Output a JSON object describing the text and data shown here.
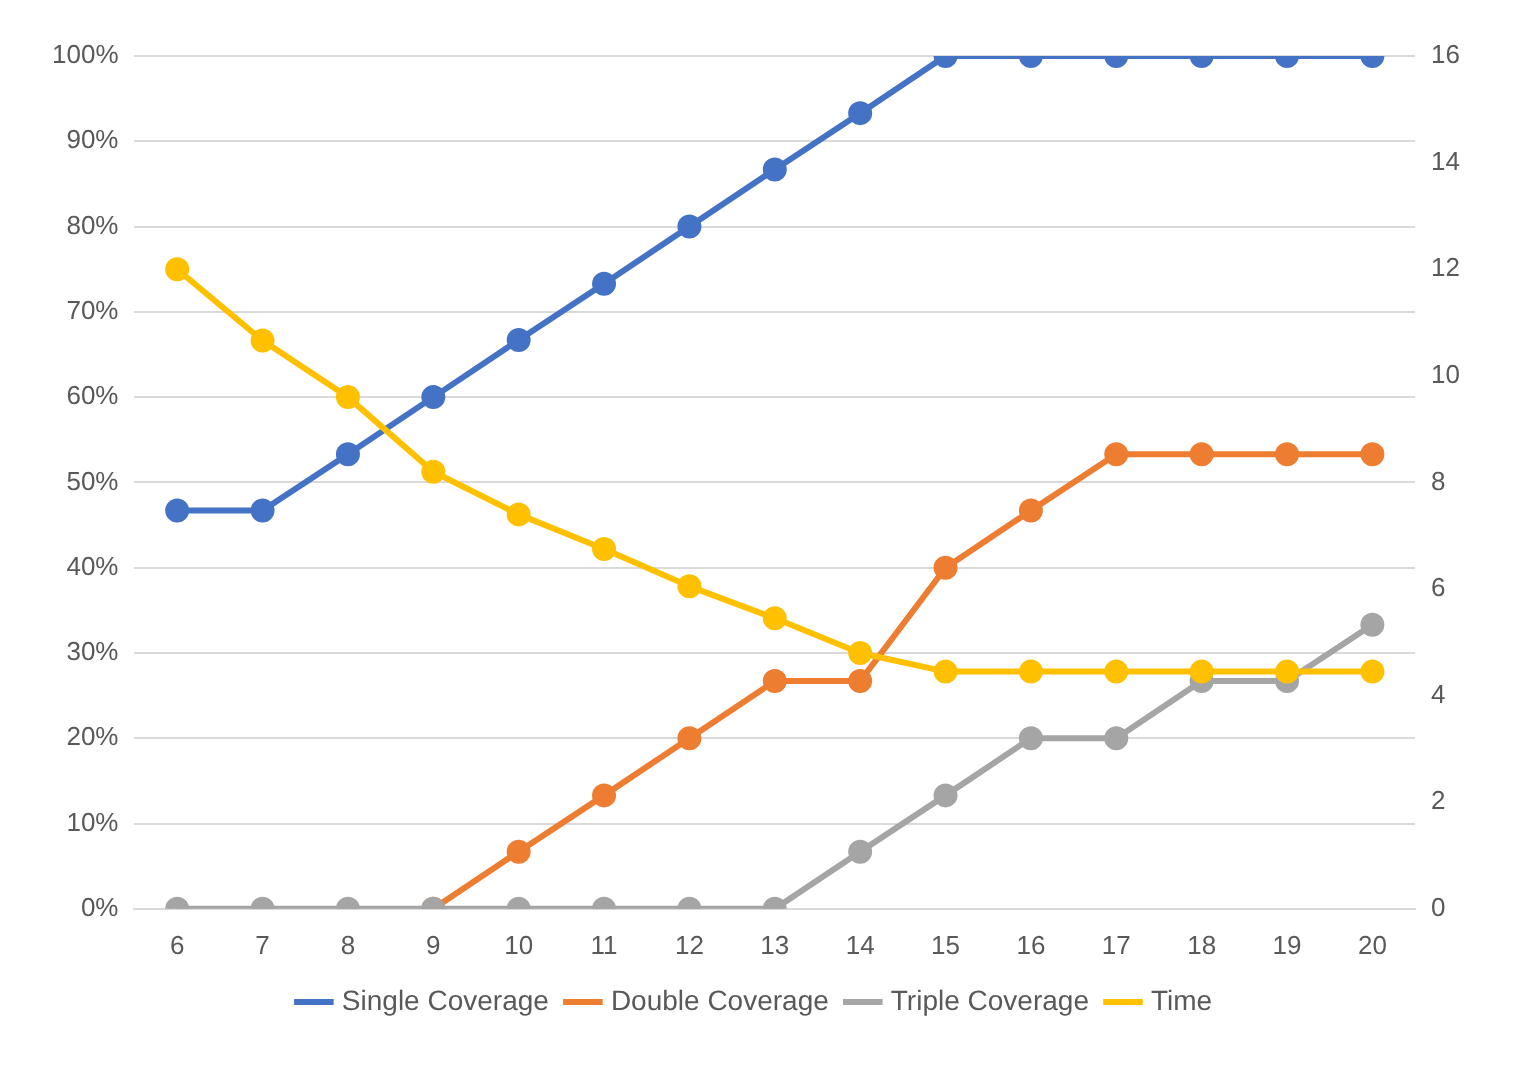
{
  "chart_data": {
    "type": "line",
    "categories": [
      "6",
      "7",
      "8",
      "9",
      "10",
      "11",
      "12",
      "13",
      "14",
      "15",
      "16",
      "17",
      "18",
      "19",
      "20"
    ],
    "series": [
      {
        "name": "Single Coverage",
        "color": "#4472c4",
        "values": [
          46.7,
          46.7,
          53.3,
          60,
          66.7,
          73.3,
          80,
          86.7,
          93.3,
          100,
          100,
          100,
          100,
          100,
          100
        ]
      },
      {
        "name": "Double Coverage",
        "color": "#ed7d31",
        "values": [
          null,
          null,
          null,
          0,
          6.7,
          13.3,
          20,
          26.7,
          26.7,
          40,
          46.7,
          53.3,
          53.3,
          53.3,
          53.3
        ]
      },
      {
        "name": "Triple Coverage",
        "color": "#a5a5a5",
        "values": [
          0,
          0,
          0,
          0,
          0,
          0,
          0,
          0,
          6.7,
          13.3,
          20,
          20,
          26.7,
          26.7,
          33.3
        ]
      },
      {
        "name": "Time",
        "color": "#ffc000",
        "axis": "y2",
        "values": [
          12,
          10.66,
          9.6,
          8.2,
          7.4,
          6.75,
          6.05,
          5.45,
          4.8,
          4.45,
          4.45,
          4.45,
          4.45,
          4.45,
          4.45
        ]
      }
    ],
    "ylim": [
      0,
      100
    ],
    "yticks": [
      {
        "value": 0,
        "label": "0%"
      },
      {
        "value": 10,
        "label": "10%"
      },
      {
        "value": 20,
        "label": "20%"
      },
      {
        "value": 30,
        "label": "30%"
      },
      {
        "value": 40,
        "label": "40%"
      },
      {
        "value": 50,
        "label": "50%"
      },
      {
        "value": 60,
        "label": "60%"
      },
      {
        "value": 70,
        "label": "70%"
      },
      {
        "value": 80,
        "label": "80%"
      },
      {
        "value": 90,
        "label": "90%"
      },
      {
        "value": 100,
        "label": "100%"
      }
    ],
    "y2lim": [
      0,
      16
    ],
    "y2ticks": [
      0,
      2,
      4,
      6,
      8,
      10,
      12,
      14,
      16
    ],
    "grid": "y",
    "legend": "bottom",
    "marker": "circle",
    "line_style": "solid"
  }
}
